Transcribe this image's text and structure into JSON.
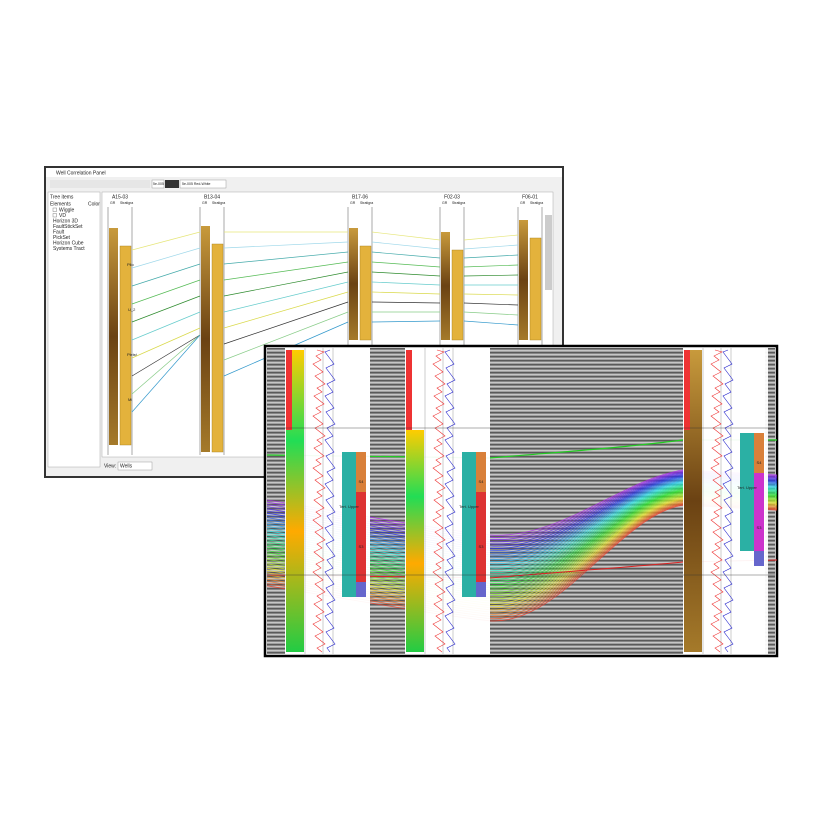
{
  "window": {
    "title": "Well Correlation Panel",
    "toolbar": [
      "5e-005",
      "5e-005 Red-White"
    ]
  },
  "tree": {
    "header": [
      "Tree items",
      "Color"
    ],
    "elements_label": "Elements",
    "items": [
      "Wiggle",
      "VD",
      "Horizon 3D",
      "FaultStickSet",
      "Fault",
      "PickSet",
      "Horizon Cube",
      "Systems Tract"
    ]
  },
  "wells": [
    "A15-03",
    "B13-04",
    "B17-06",
    "F02-03",
    "F06-01"
  ],
  "track_headers": [
    "GR",
    "Stratigra"
  ],
  "view": {
    "label": "View:",
    "value": "Wells"
  },
  "strat_labels": [
    "Plio",
    "U_2",
    "Pleist",
    "Mi"
  ],
  "overlay": {
    "unit_labels": [
      "S4",
      "S3",
      "Tert. Upper"
    ]
  }
}
